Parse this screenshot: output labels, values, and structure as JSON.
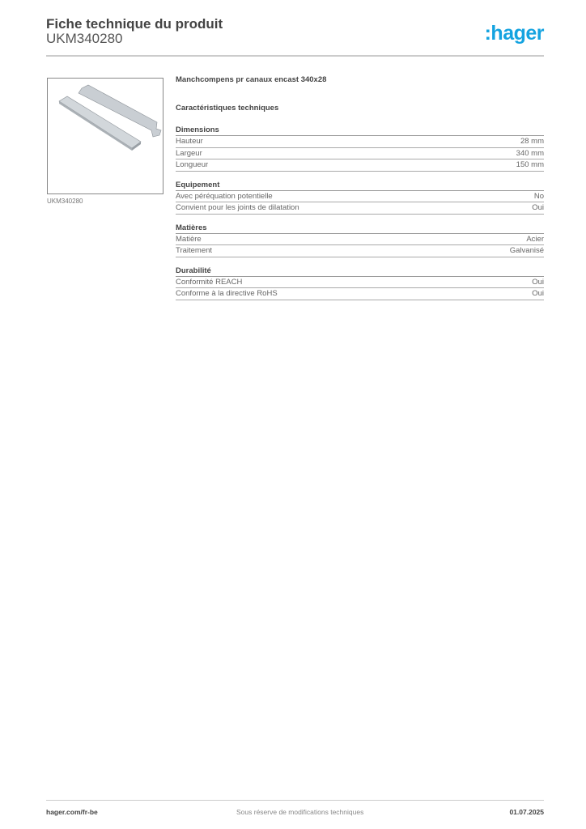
{
  "header": {
    "title": "Fiche technique du produit",
    "code": "UKM340280",
    "logo": ":hager",
    "logo_color": "#14a3e0"
  },
  "image": {
    "caption": "UKM340280"
  },
  "product": {
    "name": "Manchcompens pr canaux encast 340x28",
    "specs_title": "Caractéristiques techniques"
  },
  "sections": [
    {
      "title": "Dimensions",
      "rows": [
        {
          "label": "Hauteur",
          "value": "28 mm"
        },
        {
          "label": "Largeur",
          "value": "340 mm"
        },
        {
          "label": "Longueur",
          "value": "150 mm"
        }
      ]
    },
    {
      "title": "Equipement",
      "rows": [
        {
          "label": "Avec péréquation potentielle",
          "value": "No"
        },
        {
          "label": "Convient pour les joints de dilatation",
          "value": "Oui"
        }
      ]
    },
    {
      "title": "Matières",
      "rows": [
        {
          "label": "Matière",
          "value": "Acier"
        },
        {
          "label": "Traitement",
          "value": "Galvanisé"
        }
      ]
    },
    {
      "title": "Durabilité",
      "rows": [
        {
          "label": "Conformité REACH",
          "value": "Oui"
        },
        {
          "label": "Conforme à la directive RoHS",
          "value": "Oui"
        }
      ]
    }
  ],
  "footer": {
    "website": "hager.com/fr-be",
    "disclaimer": "Sous réserve de modifications techniques",
    "date": "01.07.2025"
  }
}
